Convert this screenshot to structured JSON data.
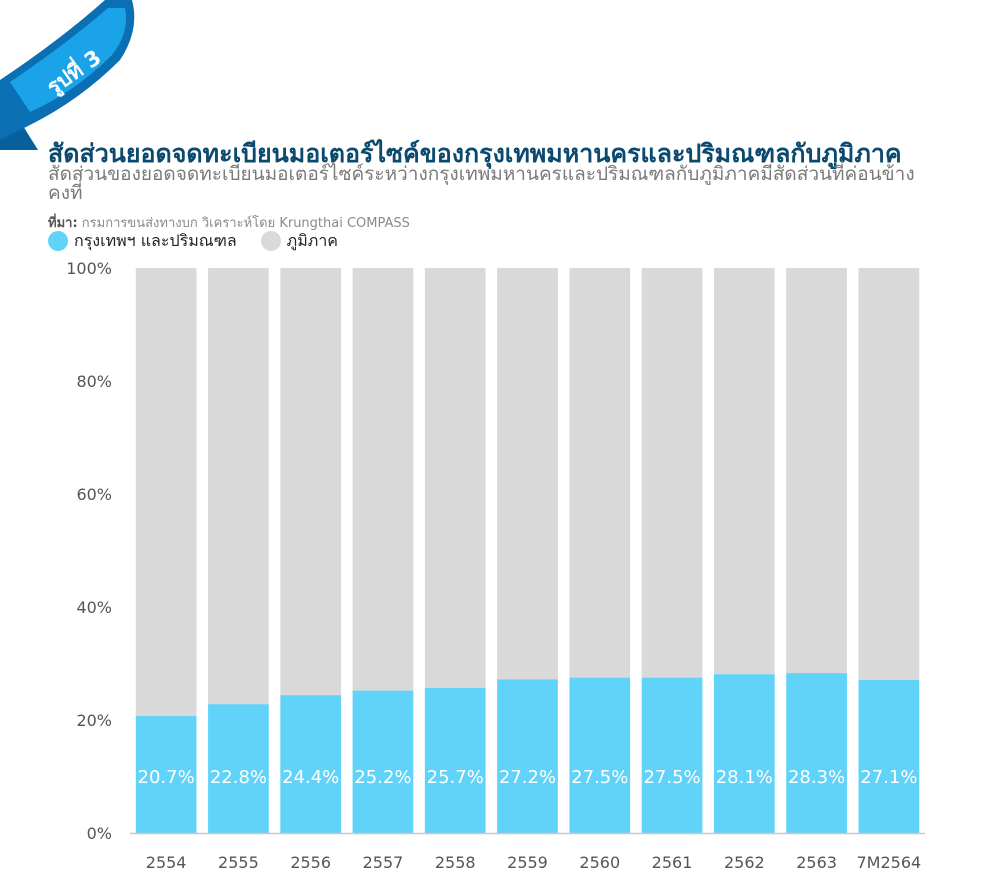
{
  "badge": {
    "text": "รูปที่ 3"
  },
  "header": {
    "title": "สัดส่วนยอดจดทะเบียนมอเตอร์ไซค์ของกรุงเทพมหานครและปริมณฑลกับภูมิภาค",
    "subtitle": "สัดส่วนของยอดจดทะเบียนมอเตอร์ไซค์ระหว่างกรุงเทพมหานครและปริมณฑลกับภูมิภาคมีสัดส่วนที่ค่อนข้างคงที่",
    "source_label": "ที่มา:",
    "source_text": " กรมการขนส่งทางบก วิเคราะห์โดย Krungthai COMPASS"
  },
  "legend": [
    {
      "label": "กรุงเทพฯ และปริมณฑล",
      "color": "#62d3f8"
    },
    {
      "label": "ภูมิภาค",
      "color": "#d9d9d9"
    }
  ],
  "colors": {
    "ribbon_dark": "#0a6fb3",
    "ribbon_light": "#1aa3e8",
    "axis": "#c8c8c8",
    "tick_text": "#555555"
  },
  "chart_data": {
    "type": "bar",
    "stacked": true,
    "categories": [
      "2554",
      "2555",
      "2556",
      "2557",
      "2558",
      "2559",
      "2560",
      "2561",
      "2562",
      "2563",
      "7M2564"
    ],
    "series": [
      {
        "name": "กรุงเทพฯ และปริมณฑล",
        "values": [
          20.7,
          22.8,
          24.4,
          25.2,
          25.7,
          27.2,
          27.5,
          27.5,
          28.1,
          28.3,
          27.1
        ]
      },
      {
        "name": "ภูมิภาค",
        "values": [
          79.3,
          77.2,
          75.6,
          74.8,
          74.3,
          72.8,
          72.5,
          72.5,
          71.9,
          71.7,
          72.9
        ]
      }
    ],
    "data_labels": [
      "20.7%",
      "22.8%",
      "24.4%",
      "25.2%",
      "25.7%",
      "27.2%",
      "27.5%",
      "27.5%",
      "28.1%",
      "28.3%",
      "27.1%"
    ],
    "yticks": [
      "0%",
      "20%",
      "40%",
      "60%",
      "80%",
      "100%"
    ],
    "ylim": [
      0,
      100
    ],
    "legend_position": "top-left",
    "grid": false
  }
}
